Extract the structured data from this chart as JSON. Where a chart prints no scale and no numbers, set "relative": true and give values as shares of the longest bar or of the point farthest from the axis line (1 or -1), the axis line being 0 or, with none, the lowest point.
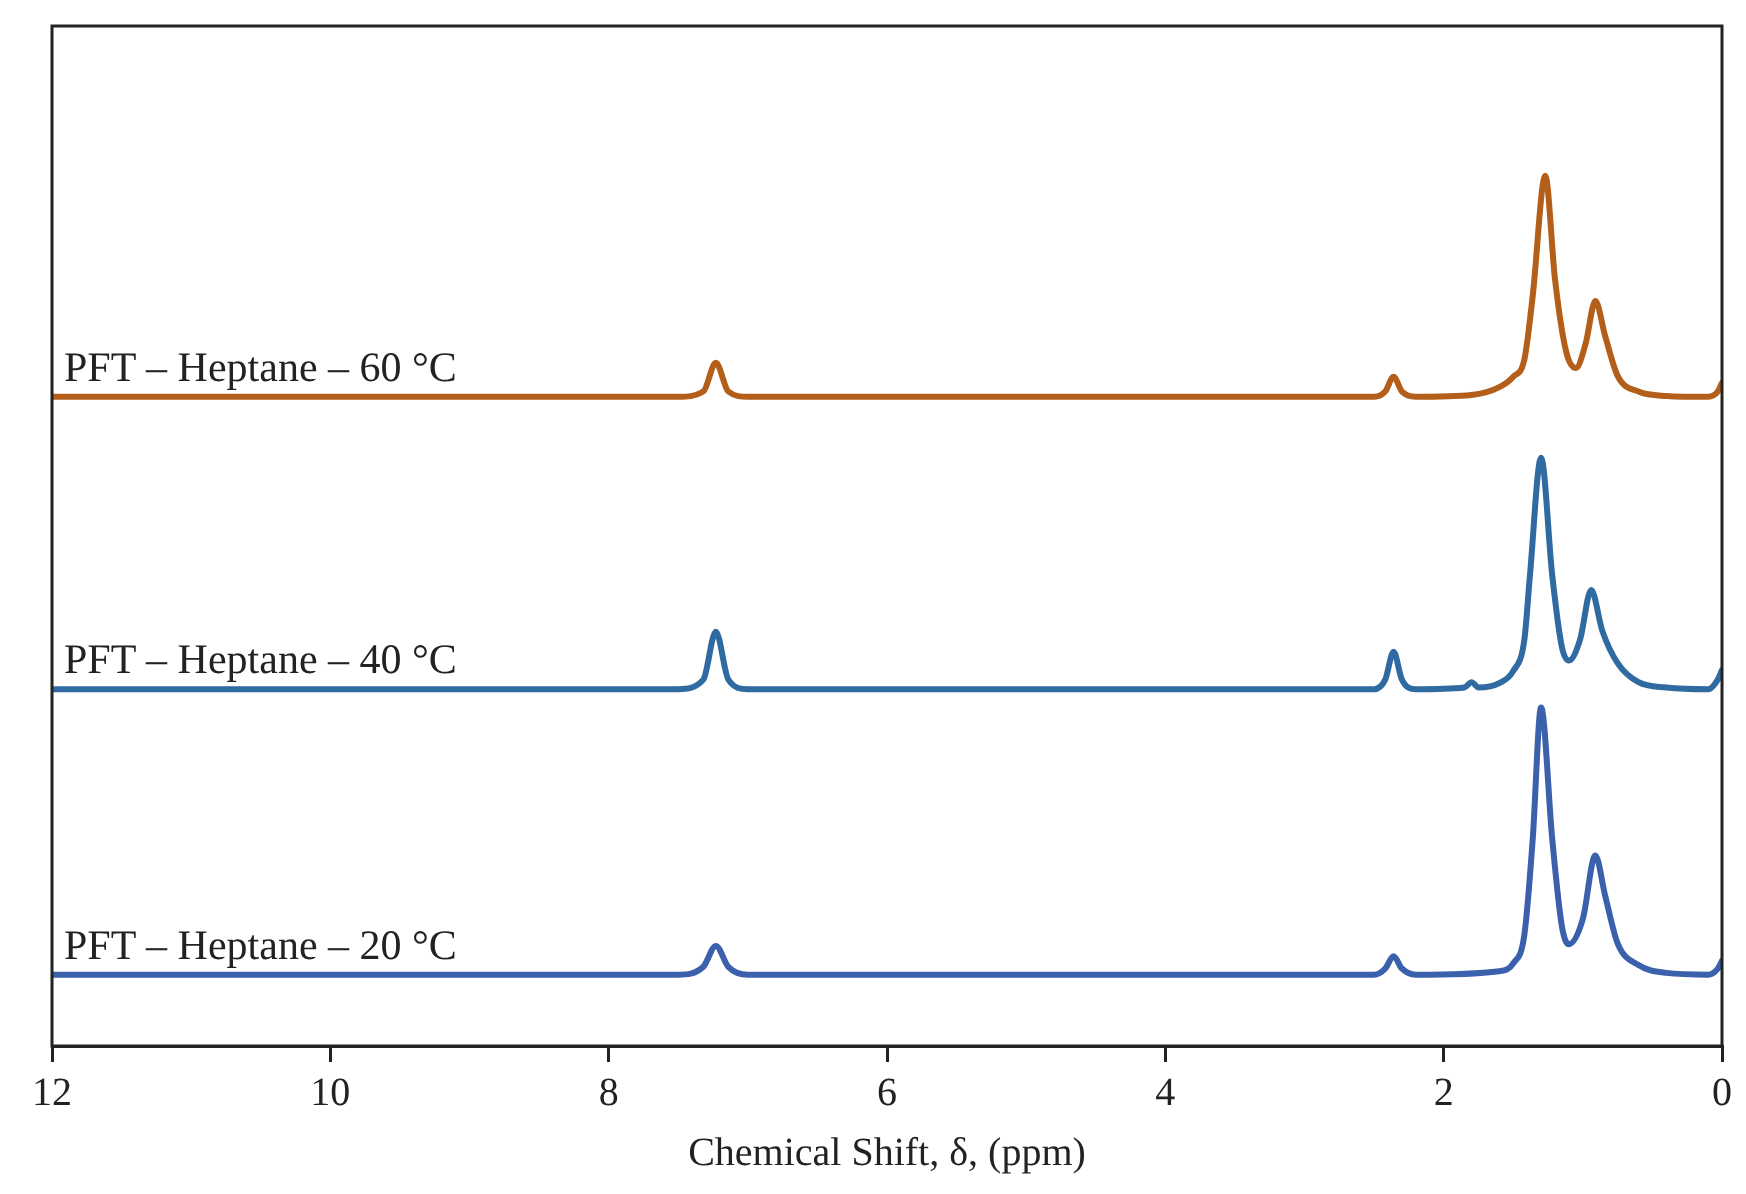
{
  "chart_data": {
    "type": "line",
    "relative": true,
    "xlabel": "Chemical Shift, δ, (ppm)",
    "xlim": [
      12,
      0
    ],
    "xticks": [
      12,
      10,
      8,
      6,
      4,
      2,
      0
    ],
    "grid": false,
    "legend": false,
    "marker": "none",
    "line_style": "solid",
    "series": [
      {
        "name": "PFT – Heptane – 60 °C",
        "color": "#b35f1a",
        "x": [
          12,
          7.5,
          7.32,
          7.23,
          7.14,
          7,
          2.5,
          2.42,
          2.36,
          2.3,
          2.2,
          1.8,
          1.6,
          1.5,
          1.42,
          1.36,
          1.27,
          1.2,
          1.12,
          1.05,
          0.98,
          0.91,
          0.84,
          0.75,
          0.6,
          0.4,
          0.1,
          0.03,
          0
        ],
        "values": [
          0.746,
          0.746,
          0.752,
          0.785,
          0.752,
          0.746,
          0.746,
          0.752,
          0.769,
          0.752,
          0.746,
          0.748,
          0.757,
          0.769,
          0.789,
          0.862,
          1.0,
          0.881,
          0.798,
          0.779,
          0.807,
          0.856,
          0.816,
          0.77,
          0.752,
          0.747,
          0.746,
          0.752,
          0.762
        ]
      },
      {
        "name": "PFT – Heptane – 40 °C",
        "color": "#2f6aa0",
        "x": [
          12,
          7.5,
          7.32,
          7.23,
          7.14,
          7,
          2.5,
          2.42,
          2.36,
          2.3,
          2.2,
          1.85,
          1.8,
          1.75,
          1.6,
          1.5,
          1.42,
          1.38,
          1.3,
          1.22,
          1.15,
          1.1,
          1.02,
          0.94,
          0.86,
          0.75,
          0.6,
          0.4,
          0.1,
          0.03,
          0
        ],
        "values": [
          0.41,
          0.41,
          0.421,
          0.476,
          0.421,
          0.41,
          0.41,
          0.421,
          0.453,
          0.421,
          0.41,
          0.412,
          0.418,
          0.412,
          0.417,
          0.431,
          0.467,
          0.541,
          0.676,
          0.541,
          0.458,
          0.443,
          0.467,
          0.524,
          0.477,
          0.44,
          0.418,
          0.412,
          0.41,
          0.421,
          0.432
        ]
      },
      {
        "name": "PFT – Heptane – 20 °C",
        "color": "#3b60ac",
        "x": [
          12,
          7.5,
          7.32,
          7.23,
          7.14,
          7,
          2.5,
          2.42,
          2.36,
          2.3,
          2.2,
          1.6,
          1.5,
          1.42,
          1.36,
          1.3,
          1.22,
          1.15,
          1.1,
          1.0,
          0.91,
          0.84,
          0.75,
          0.6,
          0.4,
          0.1,
          0.03,
          0
        ],
        "values": [
          0.082,
          0.082,
          0.091,
          0.115,
          0.091,
          0.082,
          0.082,
          0.089,
          0.103,
          0.089,
          0.082,
          0.086,
          0.095,
          0.128,
          0.238,
          0.389,
          0.238,
          0.137,
          0.117,
          0.146,
          0.219,
          0.173,
          0.118,
          0.093,
          0.084,
          0.082,
          0.089,
          0.098
        ]
      }
    ]
  }
}
